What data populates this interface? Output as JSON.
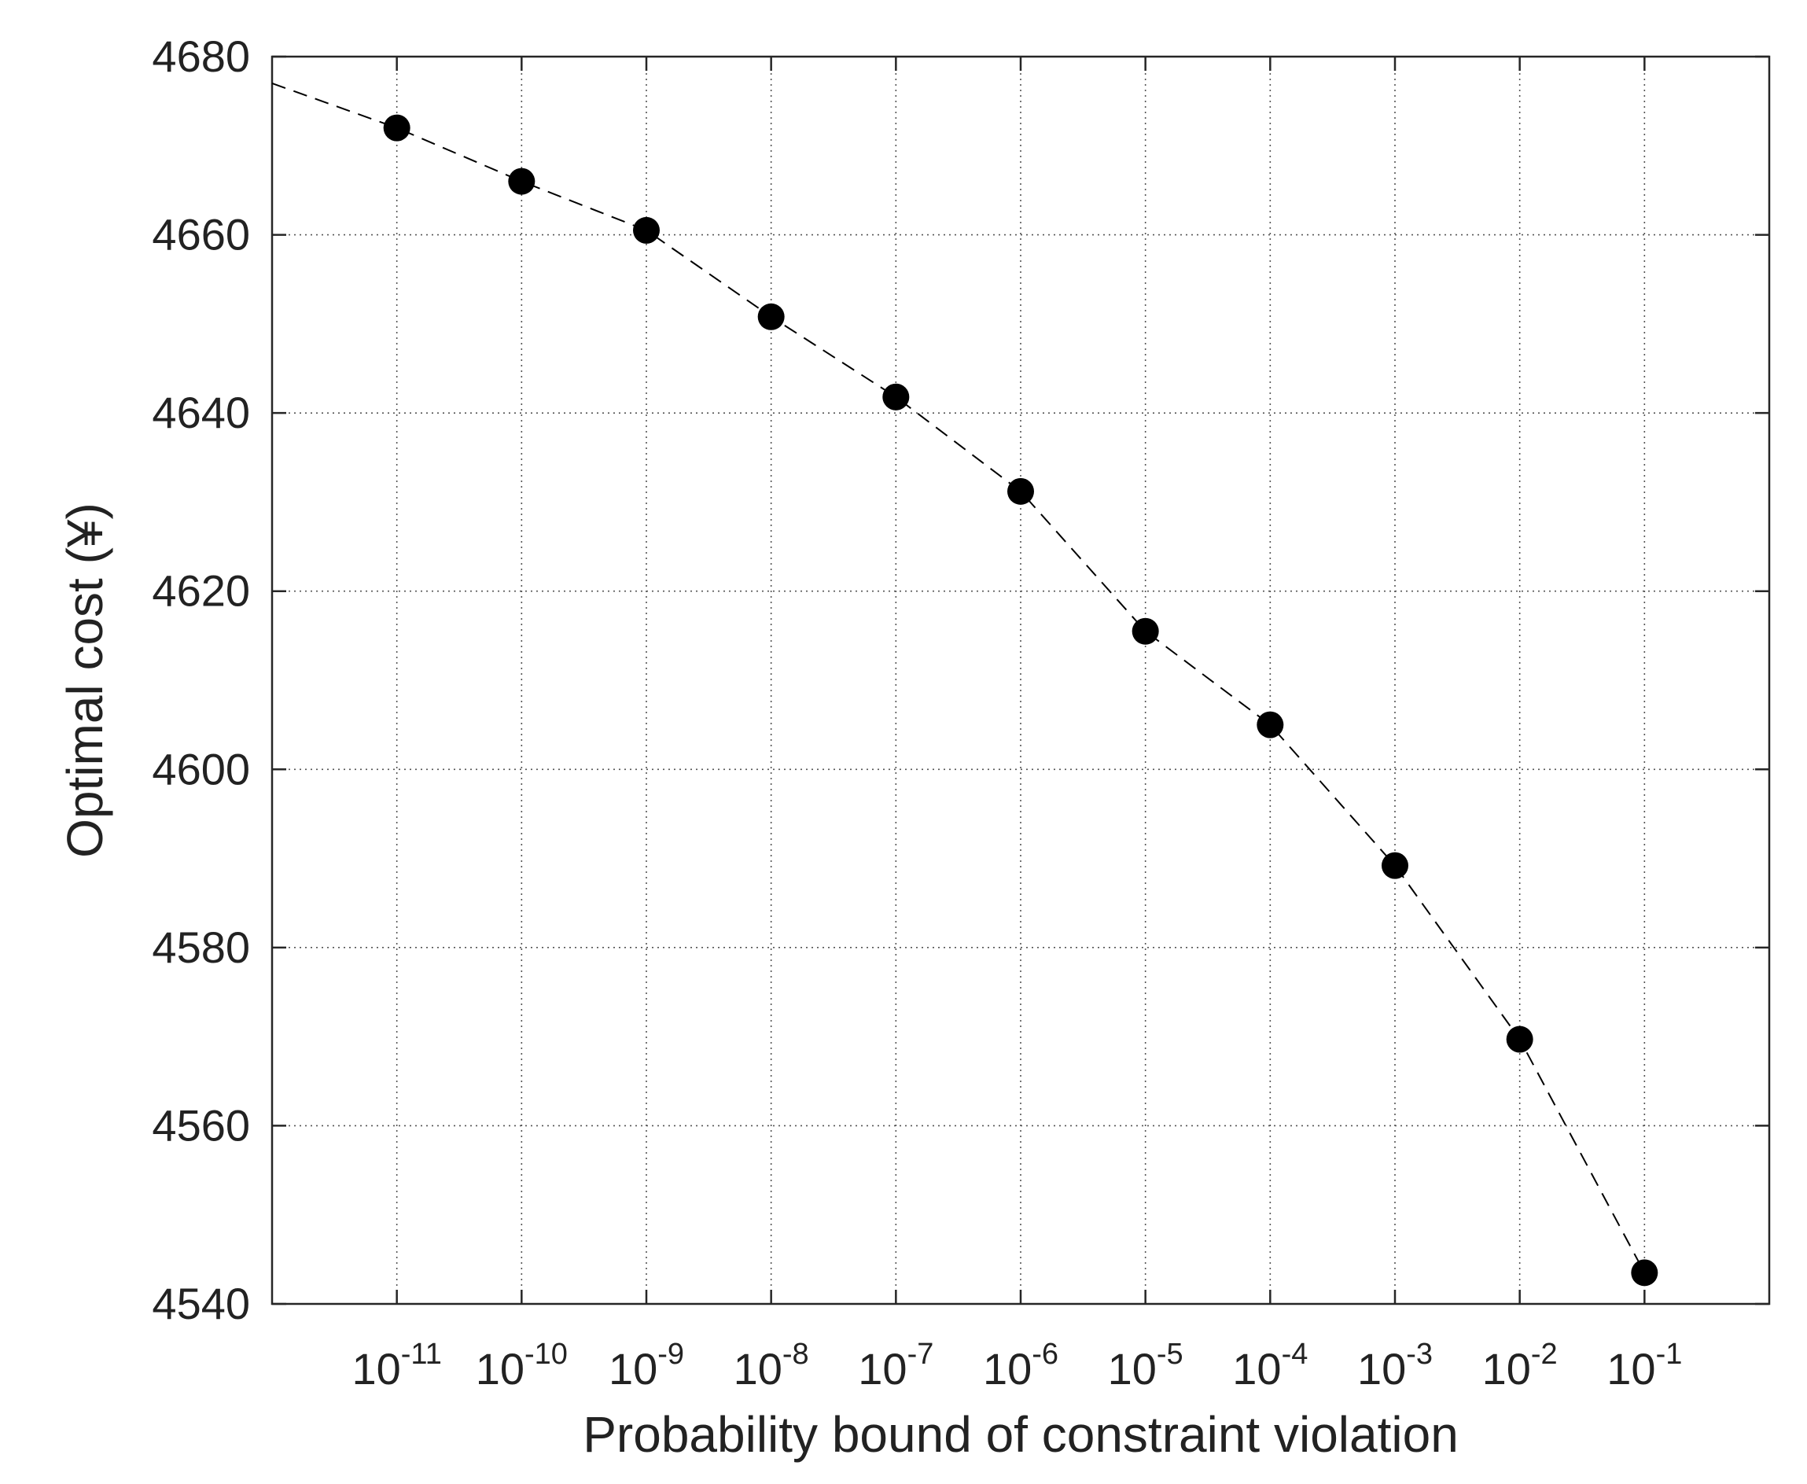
{
  "chart_data": {
    "type": "line",
    "title": "",
    "xlabel": "Probability bound of constraint violation",
    "ylabel": "Optimal cost (¥)",
    "x_scale": "log",
    "xlim": [
      1e-12,
      1
    ],
    "ylim": [
      4540,
      4680
    ],
    "x_ticks": [
      {
        "base": "10",
        "exp": "-11"
      },
      {
        "base": "10",
        "exp": "-10"
      },
      {
        "base": "10",
        "exp": "-9"
      },
      {
        "base": "10",
        "exp": "-8"
      },
      {
        "base": "10",
        "exp": "-7"
      },
      {
        "base": "10",
        "exp": "-6"
      },
      {
        "base": "10",
        "exp": "-5"
      },
      {
        "base": "10",
        "exp": "-4"
      },
      {
        "base": "10",
        "exp": "-3"
      },
      {
        "base": "10",
        "exp": "-2"
      },
      {
        "base": "10",
        "exp": "-1"
      }
    ],
    "y_ticks": [
      "4540",
      "4560",
      "4580",
      "4600",
      "4620",
      "4640",
      "4660",
      "4680"
    ],
    "grid": true,
    "series": [
      {
        "style": "dashed line with filled circle markers",
        "color": "#000000",
        "x": [
          1e-11,
          1e-10,
          1e-09,
          1e-08,
          1e-07,
          1e-06,
          1e-05,
          0.0001,
          0.001,
          0.01,
          0.1
        ],
        "y": [
          4672,
          4666,
          4660.5,
          4650.8,
          4641.8,
          4631.2,
          4615.5,
          4605,
          4589.2,
          4569.7,
          4543.5
        ]
      }
    ],
    "dashed_line_start": {
      "x": 1e-12,
      "y": 4677
    }
  }
}
